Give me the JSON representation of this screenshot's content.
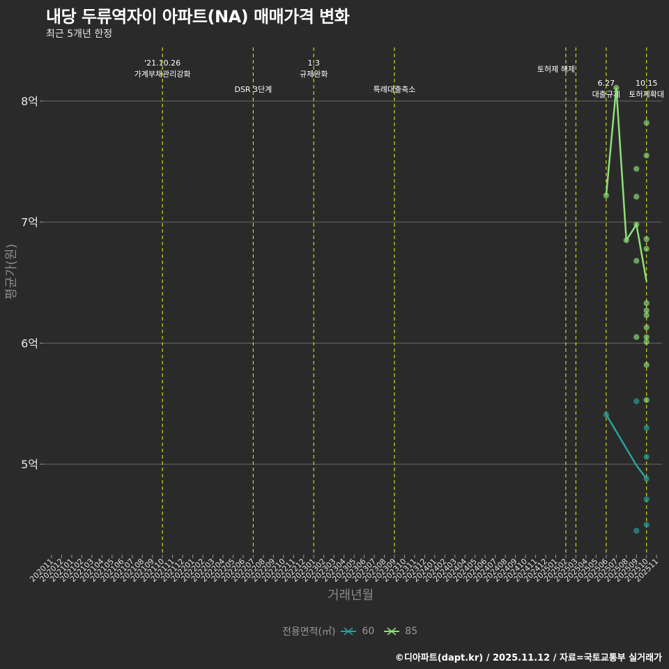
{
  "header": {
    "title": "내당 두류역자이 아파트(NA) 매매가격 변화",
    "subtitle": "최근 5개년 한정"
  },
  "axes": {
    "y_title": "평균가(원)",
    "x_title": "거래년월",
    "y_ticks": [
      "8억",
      "7억",
      "6억",
      "5억"
    ]
  },
  "legend": {
    "title": "전용면적(㎡)",
    "items": [
      {
        "label": "60",
        "color": "#26a39a"
      },
      {
        "label": "85",
        "color": "#8ee07a"
      }
    ]
  },
  "footer": "©디아파트(dapt.kr) / 2025.11.12 / 자료=국토교통부 실거래가",
  "events": [
    {
      "month": "202110",
      "line1": "'21.10.26",
      "line2": "가계부채관리강화"
    },
    {
      "month": "202207",
      "line1": "",
      "line2": "DSR 3단계"
    },
    {
      "month": "202301",
      "line1": "1.3",
      "line2": "규제완화"
    },
    {
      "month": "202309",
      "line1": "",
      "line2": "특례대출축소"
    },
    {
      "month": "202502",
      "line1": "",
      "line2": "토허제 해제"
    },
    {
      "month": "202503",
      "line1": "",
      "line2": ""
    },
    {
      "month": "202506",
      "line1": "6.27",
      "line2": "대출규제"
    },
    {
      "month": "202510",
      "line1": "10.15",
      "line2": "토허제확대"
    }
  ],
  "chart_data": {
    "type": "line",
    "title": "내당 두류역자이 아파트(NA) 매매가격 변화",
    "subtitle": "최근 5개년 한정",
    "xlabel": "거래년월",
    "ylabel": "평균가(원)",
    "ylim": [
      4.3,
      8.35
    ],
    "y_unit": "억",
    "x_categories": [
      "202011",
      "202012",
      "202101",
      "202102",
      "202103",
      "202104",
      "202105",
      "202106",
      "202107",
      "202108",
      "202109",
      "202110",
      "202111",
      "202112",
      "202201",
      "202202",
      "202203",
      "202204",
      "202205",
      "202206",
      "202207",
      "202208",
      "202209",
      "202210",
      "202211",
      "202212",
      "202301",
      "202302",
      "202303",
      "202304",
      "202305",
      "202306",
      "202307",
      "202308",
      "202309",
      "202310",
      "202311",
      "202312",
      "202401",
      "202402",
      "202403",
      "202404",
      "202405",
      "202406",
      "202407",
      "202408",
      "202409",
      "202410",
      "202411",
      "202412",
      "202501",
      "202502",
      "202503",
      "202504",
      "202505",
      "202506",
      "202507",
      "202508",
      "202509",
      "202510",
      "202511"
    ],
    "series": [
      {
        "name": "60",
        "color": "#26a39a",
        "line": [
          {
            "x": "202506",
            "y": 5.41
          },
          {
            "x": "202509",
            "y": 4.99
          },
          {
            "x": "202510",
            "y": 4.88
          }
        ],
        "points": [
          {
            "x": "202506",
            "y": 5.41
          },
          {
            "x": "202509",
            "y": 5.52
          },
          {
            "x": "202509",
            "y": 4.45
          },
          {
            "x": "202510",
            "y": 5.3
          },
          {
            "x": "202510",
            "y": 5.06
          },
          {
            "x": "202510",
            "y": 4.88
          },
          {
            "x": "202510",
            "y": 4.71
          },
          {
            "x": "202510",
            "y": 4.5
          }
        ]
      },
      {
        "name": "85",
        "color": "#8ee07a",
        "line": [
          {
            "x": "202506",
            "y": 7.22
          },
          {
            "x": "202507",
            "y": 8.11
          },
          {
            "x": "202508",
            "y": 6.85
          },
          {
            "x": "202509",
            "y": 6.98
          },
          {
            "x": "202510",
            "y": 6.51
          }
        ],
        "points": [
          {
            "x": "202506",
            "y": 7.22
          },
          {
            "x": "202507",
            "y": 8.11
          },
          {
            "x": "202508",
            "y": 6.85
          },
          {
            "x": "202509",
            "y": 7.44
          },
          {
            "x": "202509",
            "y": 7.21
          },
          {
            "x": "202509",
            "y": 6.98
          },
          {
            "x": "202509",
            "y": 6.68
          },
          {
            "x": "202509",
            "y": 6.05
          },
          {
            "x": "202510",
            "y": 7.82
          },
          {
            "x": "202510",
            "y": 7.55
          },
          {
            "x": "202510",
            "y": 6.86
          },
          {
            "x": "202510",
            "y": 6.78
          },
          {
            "x": "202510",
            "y": 6.33
          },
          {
            "x": "202510",
            "y": 6.27
          },
          {
            "x": "202510",
            "y": 6.23
          },
          {
            "x": "202510",
            "y": 6.13
          },
          {
            "x": "202510",
            "y": 6.05
          },
          {
            "x": "202510",
            "y": 6.01
          },
          {
            "x": "202510",
            "y": 5.82
          },
          {
            "x": "202510",
            "y": 5.53
          }
        ]
      }
    ],
    "vlines": [
      "202110",
      "202207",
      "202301",
      "202309",
      "202502",
      "202503",
      "202506",
      "202510"
    ],
    "grid": true,
    "legend_position": "bottom"
  }
}
